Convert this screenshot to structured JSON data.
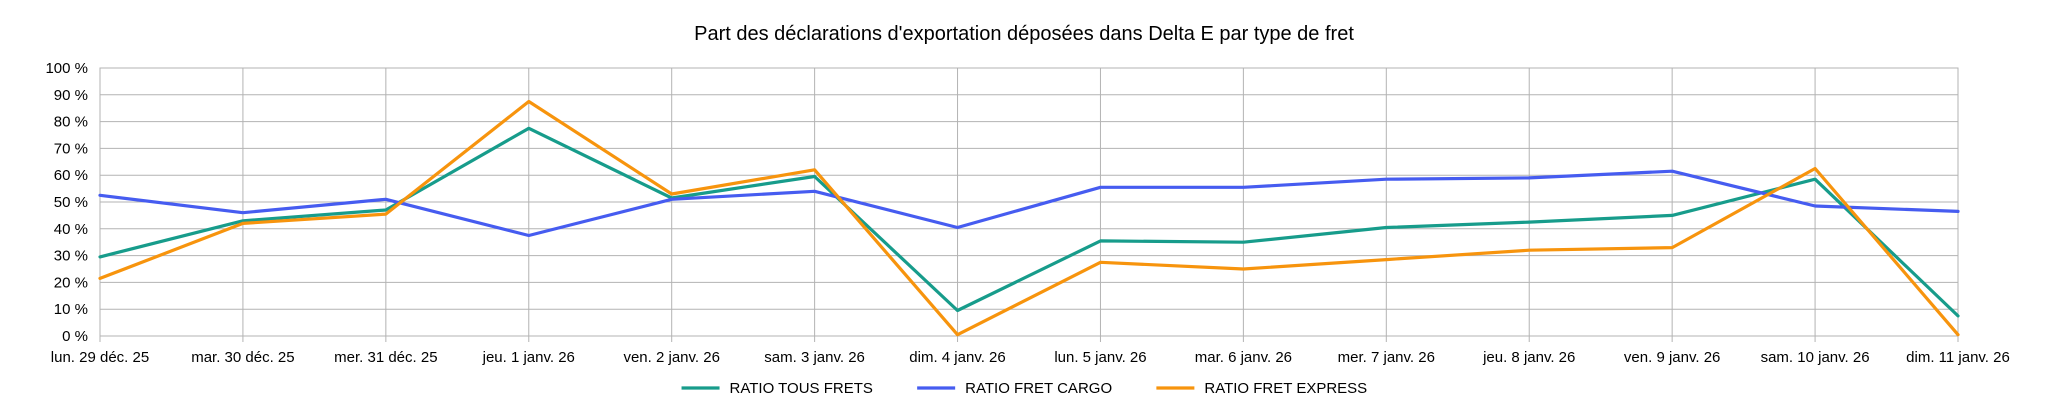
{
  "chart_data": {
    "type": "line",
    "title": "Part des déclarations d'exportation déposées dans Delta E par type de fret",
    "xlabel": "",
    "ylabel": "",
    "ylim": [
      0,
      100
    ],
    "y_ticks": [
      "0 %",
      "10 %",
      "20 %",
      "30 %",
      "40 %",
      "50 %",
      "60 %",
      "70 %",
      "80 %",
      "90 %",
      "100 %"
    ],
    "categories": [
      "lun. 29 déc. 25",
      "mar. 30 déc. 25",
      "mer. 31 déc. 25",
      "jeu. 1 janv. 26",
      "ven. 2 janv. 26",
      "sam. 3 janv. 26",
      "dim. 4 janv. 26",
      "lun. 5 janv. 26",
      "mar. 6 janv. 26",
      "mer. 7 janv. 26",
      "jeu. 8 janv. 26",
      "ven. 9 janv. 26",
      "sam. 10 janv. 26",
      "dim. 11 janv. 26"
    ],
    "series": [
      {
        "name": "RATIO TOUS FRETS",
        "color": "#179c8b",
        "values": [
          29.5,
          43,
          47,
          77.5,
          51.5,
          59.5,
          9.5,
          35.5,
          35,
          40.5,
          42.5,
          45,
          58.5,
          7.5
        ]
      },
      {
        "name": "RATIO FRET CARGO",
        "color": "#465cf0",
        "values": [
          52.5,
          46,
          51,
          37.5,
          51,
          54,
          40.5,
          55.5,
          55.5,
          58.5,
          59,
          61.5,
          48.5,
          46.5
        ]
      },
      {
        "name": "RATIO FRET EXPRESS",
        "color": "#f7940d",
        "values": [
          21.5,
          42,
          45.5,
          87.5,
          53,
          62,
          0.5,
          27.5,
          25,
          28.5,
          32,
          33,
          62.5,
          0.5
        ]
      }
    ],
    "legend": "bottom-center",
    "grid": true
  }
}
